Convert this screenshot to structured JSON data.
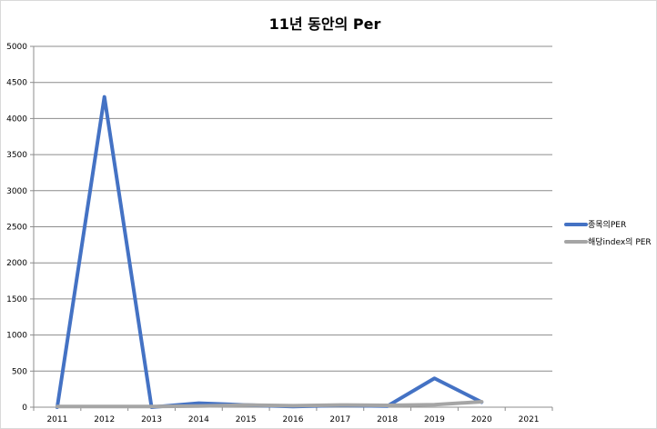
{
  "chart_data": {
    "type": "line",
    "title": "11년 동안의 Per",
    "xlabel": "",
    "ylabel": "",
    "categories": [
      "2011",
      "2012",
      "2013",
      "2014",
      "2015",
      "2016",
      "2017",
      "2018",
      "2019",
      "2020",
      "2021"
    ],
    "ylim": [
      0,
      5000
    ],
    "yticks": [
      0,
      500,
      1000,
      1500,
      2000,
      2500,
      3000,
      3500,
      4000,
      4500,
      5000
    ],
    "grid": true,
    "legend_position": "right",
    "series": [
      {
        "name": "종목의PER",
        "color": "#4472c4",
        "values": [
          0,
          4300,
          0,
          55,
          30,
          10,
          25,
          15,
          400,
          70,
          null
        ]
      },
      {
        "name": "해당index의 PER",
        "color": "#a5a5a5",
        "values": [
          10,
          10,
          10,
          15,
          30,
          20,
          30,
          25,
          35,
          75,
          null
        ]
      }
    ]
  }
}
